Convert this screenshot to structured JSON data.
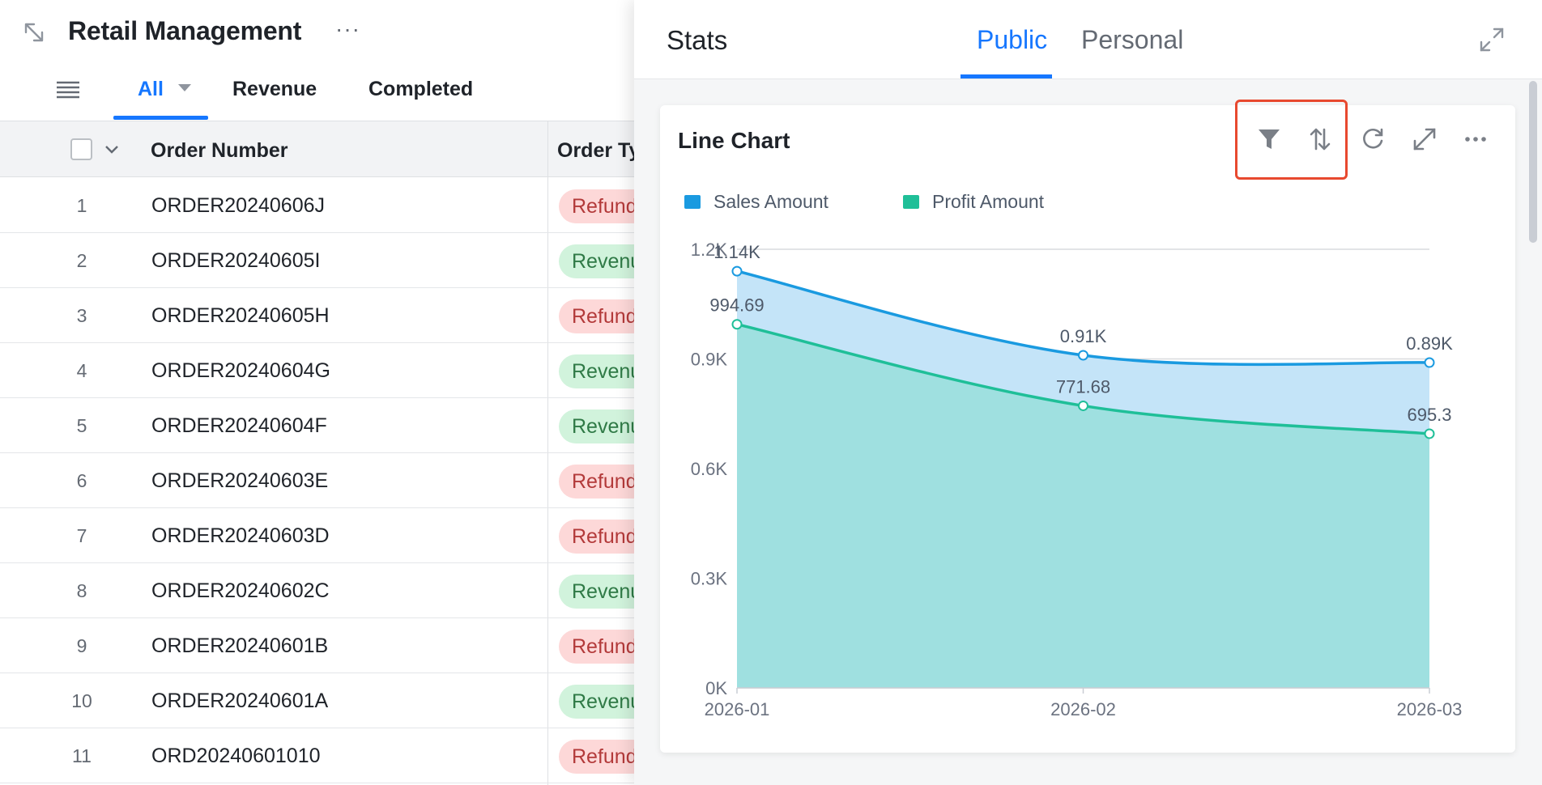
{
  "app": {
    "title": "Retail Management",
    "more_label": "···"
  },
  "views": {
    "tabs": [
      {
        "label": "All",
        "active": true,
        "has_dropdown": true
      },
      {
        "label": "Revenue",
        "active": false
      },
      {
        "label": "Completed",
        "active": false
      }
    ]
  },
  "table": {
    "columns": [
      "Order Number",
      "Order Ty"
    ],
    "rows": [
      {
        "num": "1",
        "order": "ORDER20240606J",
        "type": "Refund",
        "kind": "refund"
      },
      {
        "num": "2",
        "order": "ORDER20240605I",
        "type": "Revenu",
        "kind": "revenue"
      },
      {
        "num": "3",
        "order": "ORDER20240605H",
        "type": "Refund",
        "kind": "refund"
      },
      {
        "num": "4",
        "order": "ORDER20240604G",
        "type": "Revenu",
        "kind": "revenue"
      },
      {
        "num": "5",
        "order": "ORDER20240604F",
        "type": "Revenu",
        "kind": "revenue"
      },
      {
        "num": "6",
        "order": "ORDER20240603E",
        "type": "Refund",
        "kind": "refund"
      },
      {
        "num": "7",
        "order": "ORDER20240603D",
        "type": "Refund",
        "kind": "refund"
      },
      {
        "num": "8",
        "order": "ORDER20240602C",
        "type": "Revenu",
        "kind": "revenue"
      },
      {
        "num": "9",
        "order": "ORDER20240601B",
        "type": "Refund",
        "kind": "refund"
      },
      {
        "num": "10",
        "order": "ORDER20240601A",
        "type": "Revenu",
        "kind": "revenue"
      },
      {
        "num": "11",
        "order": "ORD20240601010",
        "type": "Refund",
        "kind": "refund"
      }
    ]
  },
  "stats": {
    "title": "Stats",
    "tabs": [
      {
        "label": "Public",
        "active": true
      },
      {
        "label": "Personal",
        "active": false
      }
    ],
    "card": {
      "title": "Line Chart",
      "actions": [
        {
          "name": "filter-icon"
        },
        {
          "name": "sort-icon"
        },
        {
          "name": "refresh-icon"
        },
        {
          "name": "fullscreen-icon"
        },
        {
          "name": "more-icon"
        }
      ],
      "more_label": "···"
    }
  },
  "colors": {
    "accent": "#1677ff",
    "sales": "#1a9ae0",
    "profit": "#1fbf98",
    "highlight": "#e8492f"
  },
  "chart_data": {
    "type": "area",
    "title": "Line Chart",
    "categories": [
      "2026-01",
      "2026-02",
      "2026-03"
    ],
    "series": [
      {
        "name": "Sales Amount",
        "values": [
          1140,
          910,
          890
        ],
        "labels": [
          "1.14K",
          "0.91K",
          "0.89K"
        ]
      },
      {
        "name": "Profit Amount",
        "values": [
          994.69,
          771.68,
          695.3
        ],
        "labels": [
          "994.69",
          "771.68",
          "695.3"
        ]
      }
    ],
    "ylim": [
      0,
      1200
    ],
    "yticks": [
      0,
      300,
      600,
      900,
      1200
    ],
    "ytick_labels": [
      "0K",
      "0.3K",
      "0.6K",
      "0.9K",
      "1.2K"
    ],
    "grid": true,
    "legend": "top-left",
    "xlabel": "",
    "ylabel": ""
  }
}
